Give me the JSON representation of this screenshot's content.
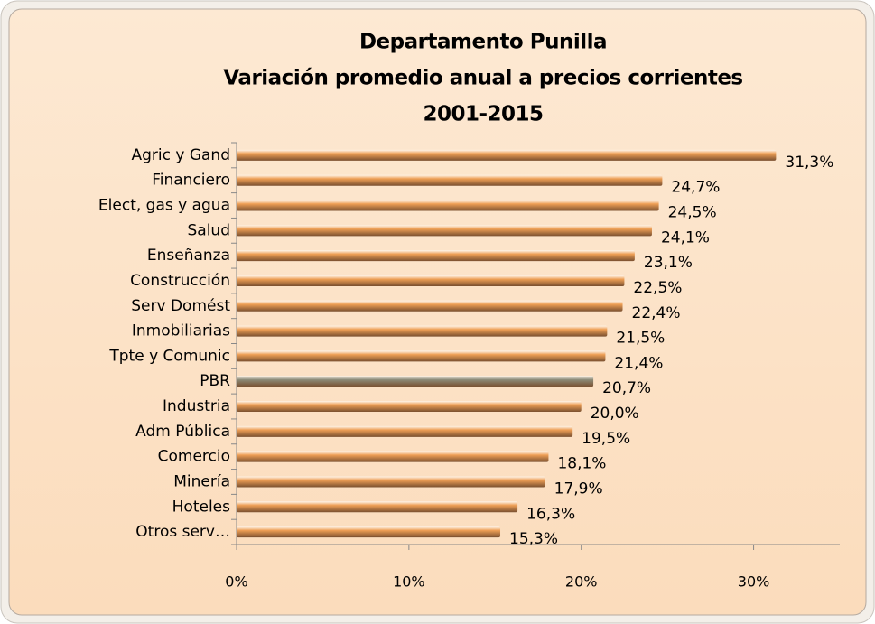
{
  "chart_data": {
    "type": "hbar",
    "title": [
      "Departamento Punilla",
      "Variación promedio anual a precios corrientes",
      "2001-2015"
    ],
    "categories": [
      "Agric y Gand",
      "Financiero",
      "Elect, gas y agua",
      "Salud",
      "Enseñanza",
      "Construcción",
      "Serv Domést",
      "Inmobiliarias",
      "Tpte y Comunic",
      "PBR",
      "Industria",
      "Adm Pública",
      "Comercio",
      "Minería",
      "Hoteles",
      "Otros serv…"
    ],
    "values": [
      31.3,
      24.7,
      24.5,
      24.1,
      23.1,
      22.5,
      22.4,
      21.5,
      21.4,
      20.7,
      20.0,
      19.5,
      18.1,
      17.9,
      16.3,
      15.3
    ],
    "value_labels": [
      "31,3%",
      "24,7%",
      "24,5%",
      "24,1%",
      "23,1%",
      "22,5%",
      "22,4%",
      "21,5%",
      "21,4%",
      "20,7%",
      "20,0%",
      "19,5%",
      "18,1%",
      "17,9%",
      "16,3%",
      "15,3%"
    ],
    "colors": [
      "#ee9f55",
      "#ee9f55",
      "#ee9f55",
      "#ee9f55",
      "#ee9f55",
      "#ee9f55",
      "#ee9f55",
      "#ee9f55",
      "#ee9f55",
      "#8c8b78",
      "#ee9f55",
      "#ee9f55",
      "#ee9f55",
      "#ee9f55",
      "#ee9f55",
      "#ee9f55"
    ],
    "xlim": [
      0,
      35
    ],
    "xticks": [
      {
        "value": 0,
        "label": "0%"
      },
      {
        "value": 10,
        "label": "10%"
      },
      {
        "value": 20,
        "label": "20%"
      },
      {
        "value": 30,
        "label": "30%"
      }
    ]
  }
}
